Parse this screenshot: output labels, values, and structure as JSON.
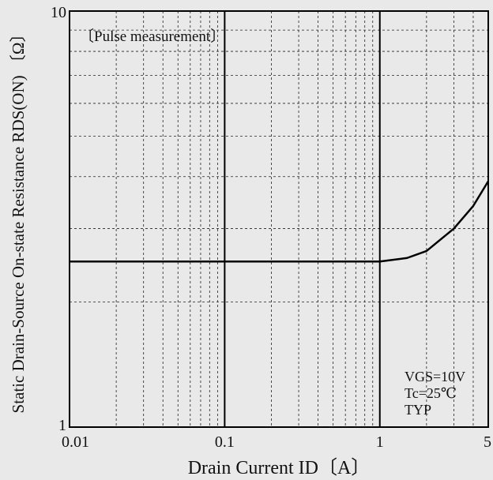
{
  "chart_data": {
    "type": "line",
    "xlabel": "Drain Current  ID〔A〕",
    "ylabel": "Static Drain-Source On-state Resistance  RDS(ON) 〔Ω〕",
    "annotations": [
      "〔Pulse measurement〕",
      "VGS=10V",
      "Tc=25℃",
      "TYP"
    ],
    "x": [
      0.01,
      1,
      1.5,
      2,
      3,
      4,
      5
    ],
    "series": [
      {
        "name": "RDS(ON)",
        "color": "#000000",
        "values": [
          2.5,
          2.5,
          2.55,
          2.65,
          3.0,
          3.4,
          3.9
        ]
      }
    ],
    "xlim": [
      0.01,
      5
    ],
    "ylim": [
      1,
      10
    ],
    "xticks": [
      0.01,
      0.1,
      1,
      5
    ],
    "yticks": [
      1,
      10
    ],
    "xlog": true,
    "ylog": true,
    "grid": true,
    "xgrid_major": [
      0.1,
      1
    ],
    "xgrid_minor": [
      0.02,
      0.03,
      0.04,
      0.05,
      0.06,
      0.07,
      0.08,
      0.09,
      0.2,
      0.3,
      0.4,
      0.5,
      0.6,
      0.7,
      0.8,
      0.9,
      2,
      3,
      4
    ],
    "ygrid_minor": [
      2,
      3,
      4,
      5,
      6,
      7,
      8,
      9
    ]
  }
}
